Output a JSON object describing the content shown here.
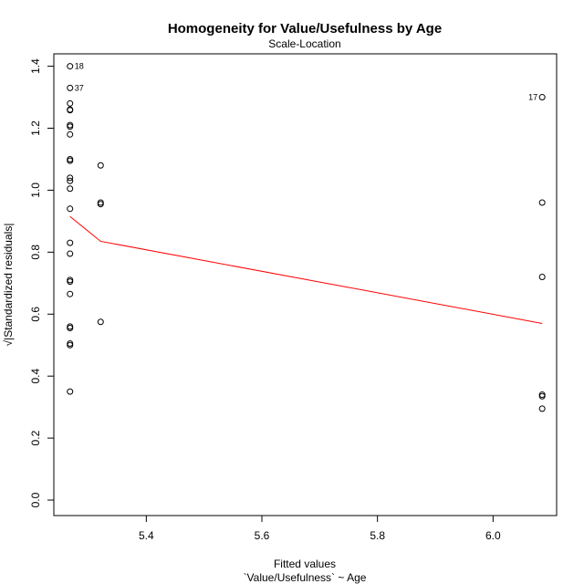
{
  "chart_data": {
    "type": "scatter",
    "title": "Homogeneity for Value/Usefulness by Age",
    "subtitle": "Scale-Location",
    "xlabel": "Fitted values",
    "xlabel2": "`Value/Usefulness` ~ Age",
    "ylabel": "√|Standardized residuals|",
    "xlim": [
      5.24,
      6.11
    ],
    "ylim": [
      -0.05,
      1.44
    ],
    "x_ticks": [
      "5.4",
      "5.6",
      "5.8",
      "6.0"
    ],
    "x_tick_values": [
      5.4,
      5.6,
      5.8,
      6.0
    ],
    "y_ticks": [
      "0.0",
      "0.2",
      "0.4",
      "0.6",
      "0.8",
      "1.0",
      "1.2",
      "1.4"
    ],
    "y_tick_values": [
      0.0,
      0.2,
      0.4,
      0.6,
      0.8,
      1.0,
      1.2,
      1.4
    ],
    "grid": false,
    "points": [
      {
        "x": 5.268,
        "y": 1.4,
        "label": "18"
      },
      {
        "x": 5.268,
        "y": 1.33,
        "label": "37"
      },
      {
        "x": 5.268,
        "y": 1.28
      },
      {
        "x": 5.268,
        "y": 1.26
      },
      {
        "x": 5.268,
        "y": 1.258
      },
      {
        "x": 5.268,
        "y": 1.21
      },
      {
        "x": 5.268,
        "y": 1.205
      },
      {
        "x": 5.268,
        "y": 1.18
      },
      {
        "x": 5.268,
        "y": 1.1
      },
      {
        "x": 5.268,
        "y": 1.095
      },
      {
        "x": 5.268,
        "y": 1.04
      },
      {
        "x": 5.268,
        "y": 1.03
      },
      {
        "x": 5.268,
        "y": 1.005
      },
      {
        "x": 5.268,
        "y": 0.94
      },
      {
        "x": 5.268,
        "y": 0.83
      },
      {
        "x": 5.268,
        "y": 0.795
      },
      {
        "x": 5.268,
        "y": 0.71
      },
      {
        "x": 5.268,
        "y": 0.705
      },
      {
        "x": 5.268,
        "y": 0.665
      },
      {
        "x": 5.268,
        "y": 0.56
      },
      {
        "x": 5.268,
        "y": 0.555
      },
      {
        "x": 5.268,
        "y": 0.505
      },
      {
        "x": 5.268,
        "y": 0.5
      },
      {
        "x": 5.268,
        "y": 0.35
      },
      {
        "x": 5.321,
        "y": 1.08
      },
      {
        "x": 5.321,
        "y": 0.96
      },
      {
        "x": 5.321,
        "y": 0.955
      },
      {
        "x": 5.321,
        "y": 0.575
      },
      {
        "x": 6.085,
        "y": 1.3,
        "label": "17"
      },
      {
        "x": 6.085,
        "y": 0.96
      },
      {
        "x": 6.085,
        "y": 0.72
      },
      {
        "x": 6.085,
        "y": 0.34
      },
      {
        "x": 6.085,
        "y": 0.335
      },
      {
        "x": 6.085,
        "y": 0.295
      }
    ],
    "smooth_line": {
      "color": "#ff0000",
      "x": [
        5.268,
        5.321,
        6.085
      ],
      "y": [
        0.915,
        0.835,
        0.57
      ]
    }
  }
}
